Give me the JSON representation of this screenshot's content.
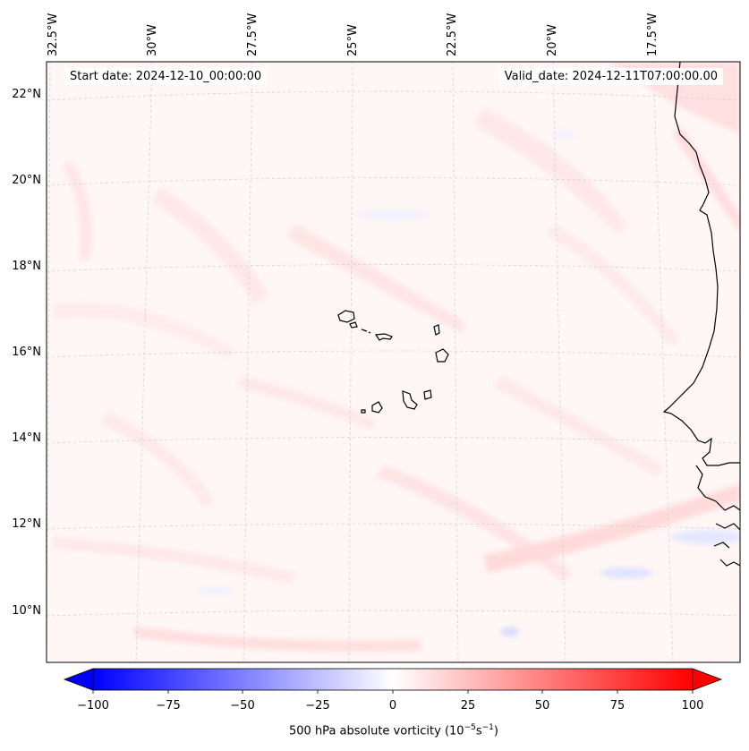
{
  "map": {
    "start_date": "Start date: 2024-12-10_00:00:00",
    "valid_date": "Valid_date: 2024-12-11T07:00:00.00",
    "lon_labels": [
      "32.5°W",
      "30°W",
      "27.5°W",
      "25°W",
      "22.5°W",
      "20°W",
      "17.5°W"
    ],
    "lat_labels": [
      "22°N",
      "20°N",
      "18°N",
      "16°N",
      "14°N",
      "12°N",
      "10°N"
    ],
    "gridlines": true,
    "region": "Cabo Verde / West African coast",
    "colormap": "bwr"
  },
  "colorbar": {
    "ticks": [
      "−100",
      "−75",
      "−50",
      "−25",
      "0",
      "25",
      "50",
      "75",
      "100"
    ],
    "min": -100,
    "max": 100,
    "label_prefix": "500 hPa absolute vorticity (10",
    "label_exp1": "−5",
    "label_mid": "s",
    "label_exp2": "−1",
    "label_suffix": ")",
    "low_color": "#0000ff",
    "mid_color": "#ffffff",
    "high_color": "#ff0000"
  }
}
